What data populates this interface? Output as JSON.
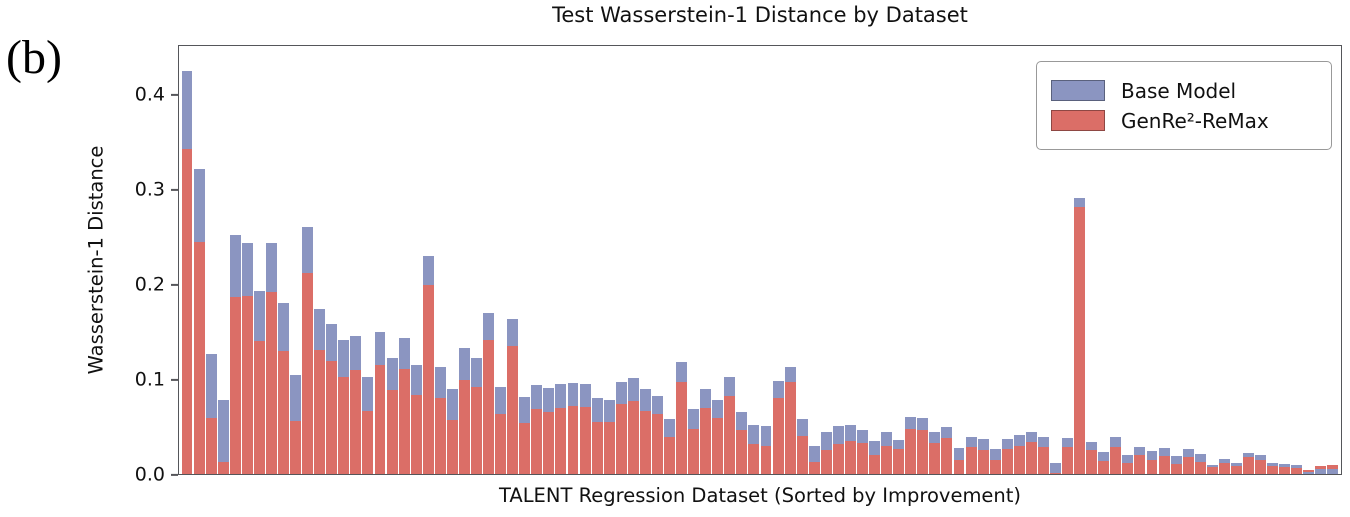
{
  "panel_label": "(b)",
  "chart_data": {
    "type": "bar",
    "bar_style": "overlaid",
    "title": "Test Wasserstein-1 Distance by Dataset",
    "xlabel": "TALENT Regression Dataset (Sorted by Improvement)",
    "ylabel": "Wasserstein-1 Distance",
    "ylim": [
      0,
      0.4526
    ],
    "grid": false,
    "legend_position": "upper right",
    "yticks": [
      {
        "value": 0.0,
        "label": "0.0"
      },
      {
        "value": 0.1,
        "label": "0.1"
      },
      {
        "value": 0.2,
        "label": "0.2"
      },
      {
        "value": 0.3,
        "label": "0.3"
      },
      {
        "value": 0.4,
        "label": "0.4"
      }
    ],
    "series": [
      {
        "name": "Base Model",
        "color": "#8B95C1",
        "values": [
          0.424,
          0.321,
          0.126,
          0.078,
          0.252,
          0.243,
          0.193,
          0.243,
          0.18,
          0.104,
          0.26,
          0.174,
          0.158,
          0.141,
          0.145,
          0.102,
          0.15,
          0.122,
          0.143,
          0.115,
          0.229,
          0.113,
          0.09,
          0.133,
          0.122,
          0.169,
          0.092,
          0.163,
          0.081,
          0.094,
          0.091,
          0.095,
          0.096,
          0.095,
          0.08,
          0.078,
          0.097,
          0.101,
          0.089,
          0.082,
          0.058,
          0.118,
          0.068,
          0.09,
          0.078,
          0.102,
          0.065,
          0.052,
          0.051,
          0.098,
          0.113,
          0.058,
          0.03,
          0.044,
          0.051,
          0.052,
          0.046,
          0.035,
          0.044,
          0.036,
          0.06,
          0.059,
          0.044,
          0.049,
          0.027,
          0.039,
          0.037,
          0.026,
          0.037,
          0.041,
          0.044,
          0.039,
          0.012,
          0.038,
          0.29,
          0.034,
          0.023,
          0.039,
          0.02,
          0.028,
          0.024,
          0.027,
          0.019,
          0.026,
          0.021,
          0.01,
          0.016,
          0.012,
          0.022,
          0.02,
          0.012,
          0.011,
          0.01,
          0.002,
          0.005,
          0.005
        ]
      },
      {
        "name": "GenRe²-ReMax",
        "color": "#DB6E67",
        "values": [
          0.342,
          0.244,
          0.059,
          0.013,
          0.186,
          0.187,
          0.14,
          0.192,
          0.13,
          0.056,
          0.212,
          0.131,
          0.119,
          0.102,
          0.109,
          0.066,
          0.115,
          0.088,
          0.111,
          0.083,
          0.199,
          0.08,
          0.057,
          0.099,
          0.092,
          0.141,
          0.063,
          0.135,
          0.054,
          0.068,
          0.065,
          0.07,
          0.072,
          0.071,
          0.055,
          0.055,
          0.074,
          0.077,
          0.066,
          0.063,
          0.039,
          0.097,
          0.047,
          0.07,
          0.059,
          0.082,
          0.046,
          0.032,
          0.03,
          0.08,
          0.097,
          0.04,
          0.013,
          0.025,
          0.032,
          0.035,
          0.033,
          0.02,
          0.03,
          0.026,
          0.047,
          0.046,
          0.033,
          0.038,
          0.015,
          0.028,
          0.025,
          0.015,
          0.026,
          0.03,
          0.034,
          0.028,
          0.001,
          0.028,
          0.281,
          0.025,
          0.014,
          0.028,
          0.012,
          0.02,
          0.015,
          0.019,
          0.011,
          0.018,
          0.013,
          0.007,
          0.012,
          0.008,
          0.018,
          0.015,
          0.008,
          0.007,
          0.006,
          0.004,
          0.008,
          0.009
        ]
      }
    ]
  },
  "legend": {
    "items": [
      {
        "label": "Base Model",
        "color": "#8B95C1"
      },
      {
        "label": "GenRe²-ReMax",
        "color": "#DB6E67"
      }
    ]
  }
}
